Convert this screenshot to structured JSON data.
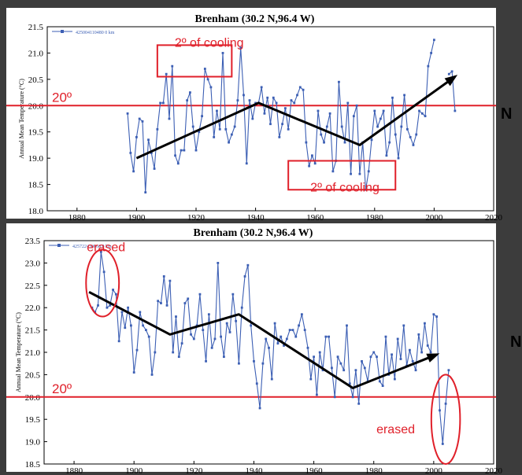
{
  "colors": {
    "series": "#3c5fb4",
    "reference": "#e0202a",
    "annotation": "#e0202a",
    "trend": "#000000",
    "panel_bg": "#ffffff",
    "frame_bg": "#3c3c3c"
  },
  "side_labels": [
    "N",
    "N"
  ],
  "chart_data": [
    {
      "type": "line",
      "title": "Brenham (30.2 N,96.4 W)",
      "ylabel": "Annual Mean Temperature (°C)",
      "xlabel": "",
      "xlim": [
        1870,
        2020
      ],
      "ylim": [
        18.0,
        21.5
      ],
      "xticks": [
        1880,
        1900,
        1920,
        1940,
        1960,
        1980,
        2000,
        2020
      ],
      "yticks": [
        18.0,
        18.5,
        19.0,
        19.5,
        20.0,
        20.5,
        21.0,
        21.5
      ],
      "grid": false,
      "legend": {
        "label": "425004110480 0 km",
        "position": "top-left"
      },
      "series": [
        {
          "x": [
            1897,
            1898,
            1899,
            1900,
            1901,
            1902,
            1903,
            1904,
            1905,
            1906,
            1907,
            1908,
            1909,
            1910,
            1911,
            1912,
            1913,
            1914,
            1915,
            1916,
            1917,
            1918,
            1919,
            1920,
            1921,
            1922,
            1923,
            1924,
            1925,
            1926,
            1927,
            1928,
            1929,
            1930,
            1931,
            1932,
            1933,
            1934,
            1935,
            1936,
            1937,
            1938,
            1939,
            1940,
            1941,
            1942,
            1943,
            1944,
            1945,
            1946,
            1947,
            1948,
            1949,
            1950,
            1951,
            1952,
            1953,
            1954,
            1955,
            1956,
            1957,
            1958,
            1959,
            1960,
            1961,
            1962,
            1963,
            1964,
            1965,
            1966,
            1967,
            1968,
            1969,
            1970,
            1971,
            1972,
            1973,
            1974,
            1975,
            1976,
            1977,
            1978,
            1979,
            1980,
            1981,
            1982,
            1983,
            1984,
            1985,
            1986,
            1987,
            1988,
            1989,
            1990,
            1991,
            1992,
            1993,
            1994,
            1995,
            1996,
            1997,
            1998,
            1999,
            2000,
            2005,
            2006,
            2007
          ],
          "values": [
            19.85,
            19.1,
            18.75,
            19.4,
            19.75,
            19.7,
            18.35,
            19.35,
            19.1,
            18.8,
            19.55,
            20.05,
            20.05,
            20.6,
            19.75,
            20.75,
            19.05,
            18.9,
            19.15,
            19.15,
            20.1,
            20.25,
            19.6,
            19.15,
            19.5,
            19.8,
            20.7,
            20.5,
            20.35,
            19.4,
            19.9,
            19.55,
            21.0,
            19.55,
            19.3,
            19.45,
            19.6,
            20.1,
            21.1,
            20.2,
            18.9,
            20.1,
            19.75,
            20.05,
            20.05,
            20.35,
            19.85,
            20.15,
            19.65,
            20.15,
            20.05,
            19.4,
            19.65,
            19.95,
            19.55,
            20.1,
            20.05,
            20.2,
            20.35,
            20.3,
            19.3,
            18.85,
            19.05,
            18.9,
            19.9,
            19.45,
            19.3,
            19.6,
            19.85,
            18.75,
            18.95,
            20.45,
            19.6,
            19.3,
            20.05,
            18.7,
            19.8,
            20.0,
            18.7,
            19.3,
            18.4,
            18.75,
            19.35,
            19.9,
            19.6,
            19.75,
            19.9,
            19.05,
            19.3,
            20.15,
            19.45,
            19.0,
            19.6,
            20.2,
            19.55,
            19.4,
            19.25,
            19.45,
            19.9,
            19.85,
            19.8,
            20.75,
            21.0,
            21.25,
            20.6,
            20.65,
            19.9
          ]
        }
      ],
      "reference_line": {
        "y": 20.0,
        "label": "20º"
      },
      "trend_points": [
        [
          1900,
          19.0
        ],
        [
          1941,
          20.05
        ],
        [
          1975,
          19.25
        ],
        [
          2007,
          20.55
        ]
      ],
      "annotations": [
        {
          "text": "2º of cooling",
          "box": {
            "x": [
              1907,
              1932
            ],
            "y": [
              20.55,
              21.15
            ]
          }
        },
        {
          "text": "2º of cooling",
          "box": {
            "x": [
              1951,
              1987
            ],
            "y": [
              18.4,
              18.95
            ]
          }
        }
      ]
    },
    {
      "type": "line",
      "title": "Brenham (30.2 N,96.4 W)",
      "ylabel": "Annual Mean Temperature (°C)",
      "xlabel": "",
      "xlim": [
        1870,
        2020
      ],
      "ylim": [
        18.5,
        23.5
      ],
      "xticks": [
        1880,
        1900,
        1920,
        1940,
        1960,
        1980,
        2000,
        2020
      ],
      "yticks": [
        18.5,
        19.0,
        19.5,
        20.0,
        20.5,
        21.0,
        21.5,
        22.0,
        22.5,
        23.0,
        23.5
      ],
      "grid": false,
      "legend": {
        "label": "425722430060 0 km",
        "position": "top-left"
      },
      "series": [
        {
          "x": [
            1886,
            1887,
            1888,
            1889,
            1890,
            1891,
            1892,
            1893,
            1894,
            1895,
            1896,
            1897,
            1898,
            1899,
            1900,
            1901,
            1902,
            1903,
            1904,
            1905,
            1906,
            1907,
            1908,
            1909,
            1910,
            1911,
            1912,
            1913,
            1914,
            1915,
            1916,
            1917,
            1918,
            1919,
            1920,
            1921,
            1922,
            1923,
            1924,
            1925,
            1926,
            1927,
            1928,
            1929,
            1930,
            1931,
            1932,
            1933,
            1934,
            1935,
            1936,
            1937,
            1938,
            1939,
            1940,
            1941,
            1942,
            1943,
            1944,
            1945,
            1946,
            1947,
            1948,
            1949,
            1950,
            1951,
            1952,
            1953,
            1954,
            1955,
            1956,
            1957,
            1958,
            1959,
            1960,
            1961,
            1962,
            1963,
            1964,
            1965,
            1966,
            1967,
            1968,
            1969,
            1970,
            1971,
            1972,
            1973,
            1974,
            1975,
            1976,
            1977,
            1978,
            1979,
            1980,
            1981,
            1982,
            1983,
            1984,
            1985,
            1986,
            1987,
            1988,
            1989,
            1990,
            1991,
            1992,
            1993,
            1994,
            1995,
            1996,
            1997,
            1998,
            1999,
            2000,
            2001,
            2002,
            2003,
            2004,
            2005
          ],
          "values": [
            22.0,
            21.9,
            22.05,
            23.25,
            22.8,
            22.0,
            22.05,
            22.4,
            22.3,
            21.25,
            21.9,
            21.55,
            22.0,
            21.6,
            20.55,
            21.05,
            21.9,
            21.6,
            21.5,
            21.35,
            20.5,
            21.0,
            22.15,
            22.1,
            22.7,
            22.05,
            22.6,
            21.0,
            21.8,
            20.9,
            21.2,
            22.1,
            22.2,
            21.4,
            21.3,
            21.6,
            22.3,
            21.5,
            20.8,
            21.85,
            21.1,
            21.3,
            23.0,
            21.35,
            20.9,
            21.65,
            21.45,
            22.3,
            21.7,
            20.75,
            22.0,
            22.7,
            22.95,
            21.6,
            20.8,
            20.3,
            19.75,
            20.75,
            21.3,
            21.1,
            20.4,
            21.65,
            21.2,
            21.35,
            21.15,
            21.3,
            21.5,
            21.5,
            21.35,
            21.6,
            21.85,
            21.5,
            21.1,
            20.4,
            20.9,
            20.05,
            21.0,
            20.6,
            21.35,
            21.35,
            20.65,
            20.0,
            20.9,
            20.75,
            20.6,
            21.6,
            20.3,
            20.0,
            20.6,
            19.85,
            20.8,
            20.65,
            20.35,
            20.9,
            21.0,
            20.9,
            20.35,
            20.25,
            21.35,
            20.5,
            20.95,
            20.4,
            21.3,
            20.85,
            21.6,
            20.7,
            21.05,
            20.8,
            20.6,
            21.4,
            21.0,
            21.65,
            21.15,
            21.0,
            21.85,
            21.8,
            19.7,
            18.95,
            19.85,
            20.6
          ]
        }
      ],
      "reference_line": {
        "y": 20.0,
        "label": "20º"
      },
      "trend_points": [
        [
          1885,
          22.35
        ],
        [
          1912,
          21.4
        ],
        [
          1935,
          21.85
        ],
        [
          1973,
          20.2
        ],
        [
          2001,
          20.95
        ]
      ],
      "annotations": [
        {
          "text": "erased",
          "ellipse": {
            "cx": 1889.5,
            "cy": 22.55,
            "rx": 5.5,
            "ry": 0.75
          }
        },
        {
          "text": "erased",
          "ellipse": {
            "cx": 2004,
            "cy": 19.5,
            "rx": 4.8,
            "ry": 1.0
          }
        }
      ]
    }
  ]
}
